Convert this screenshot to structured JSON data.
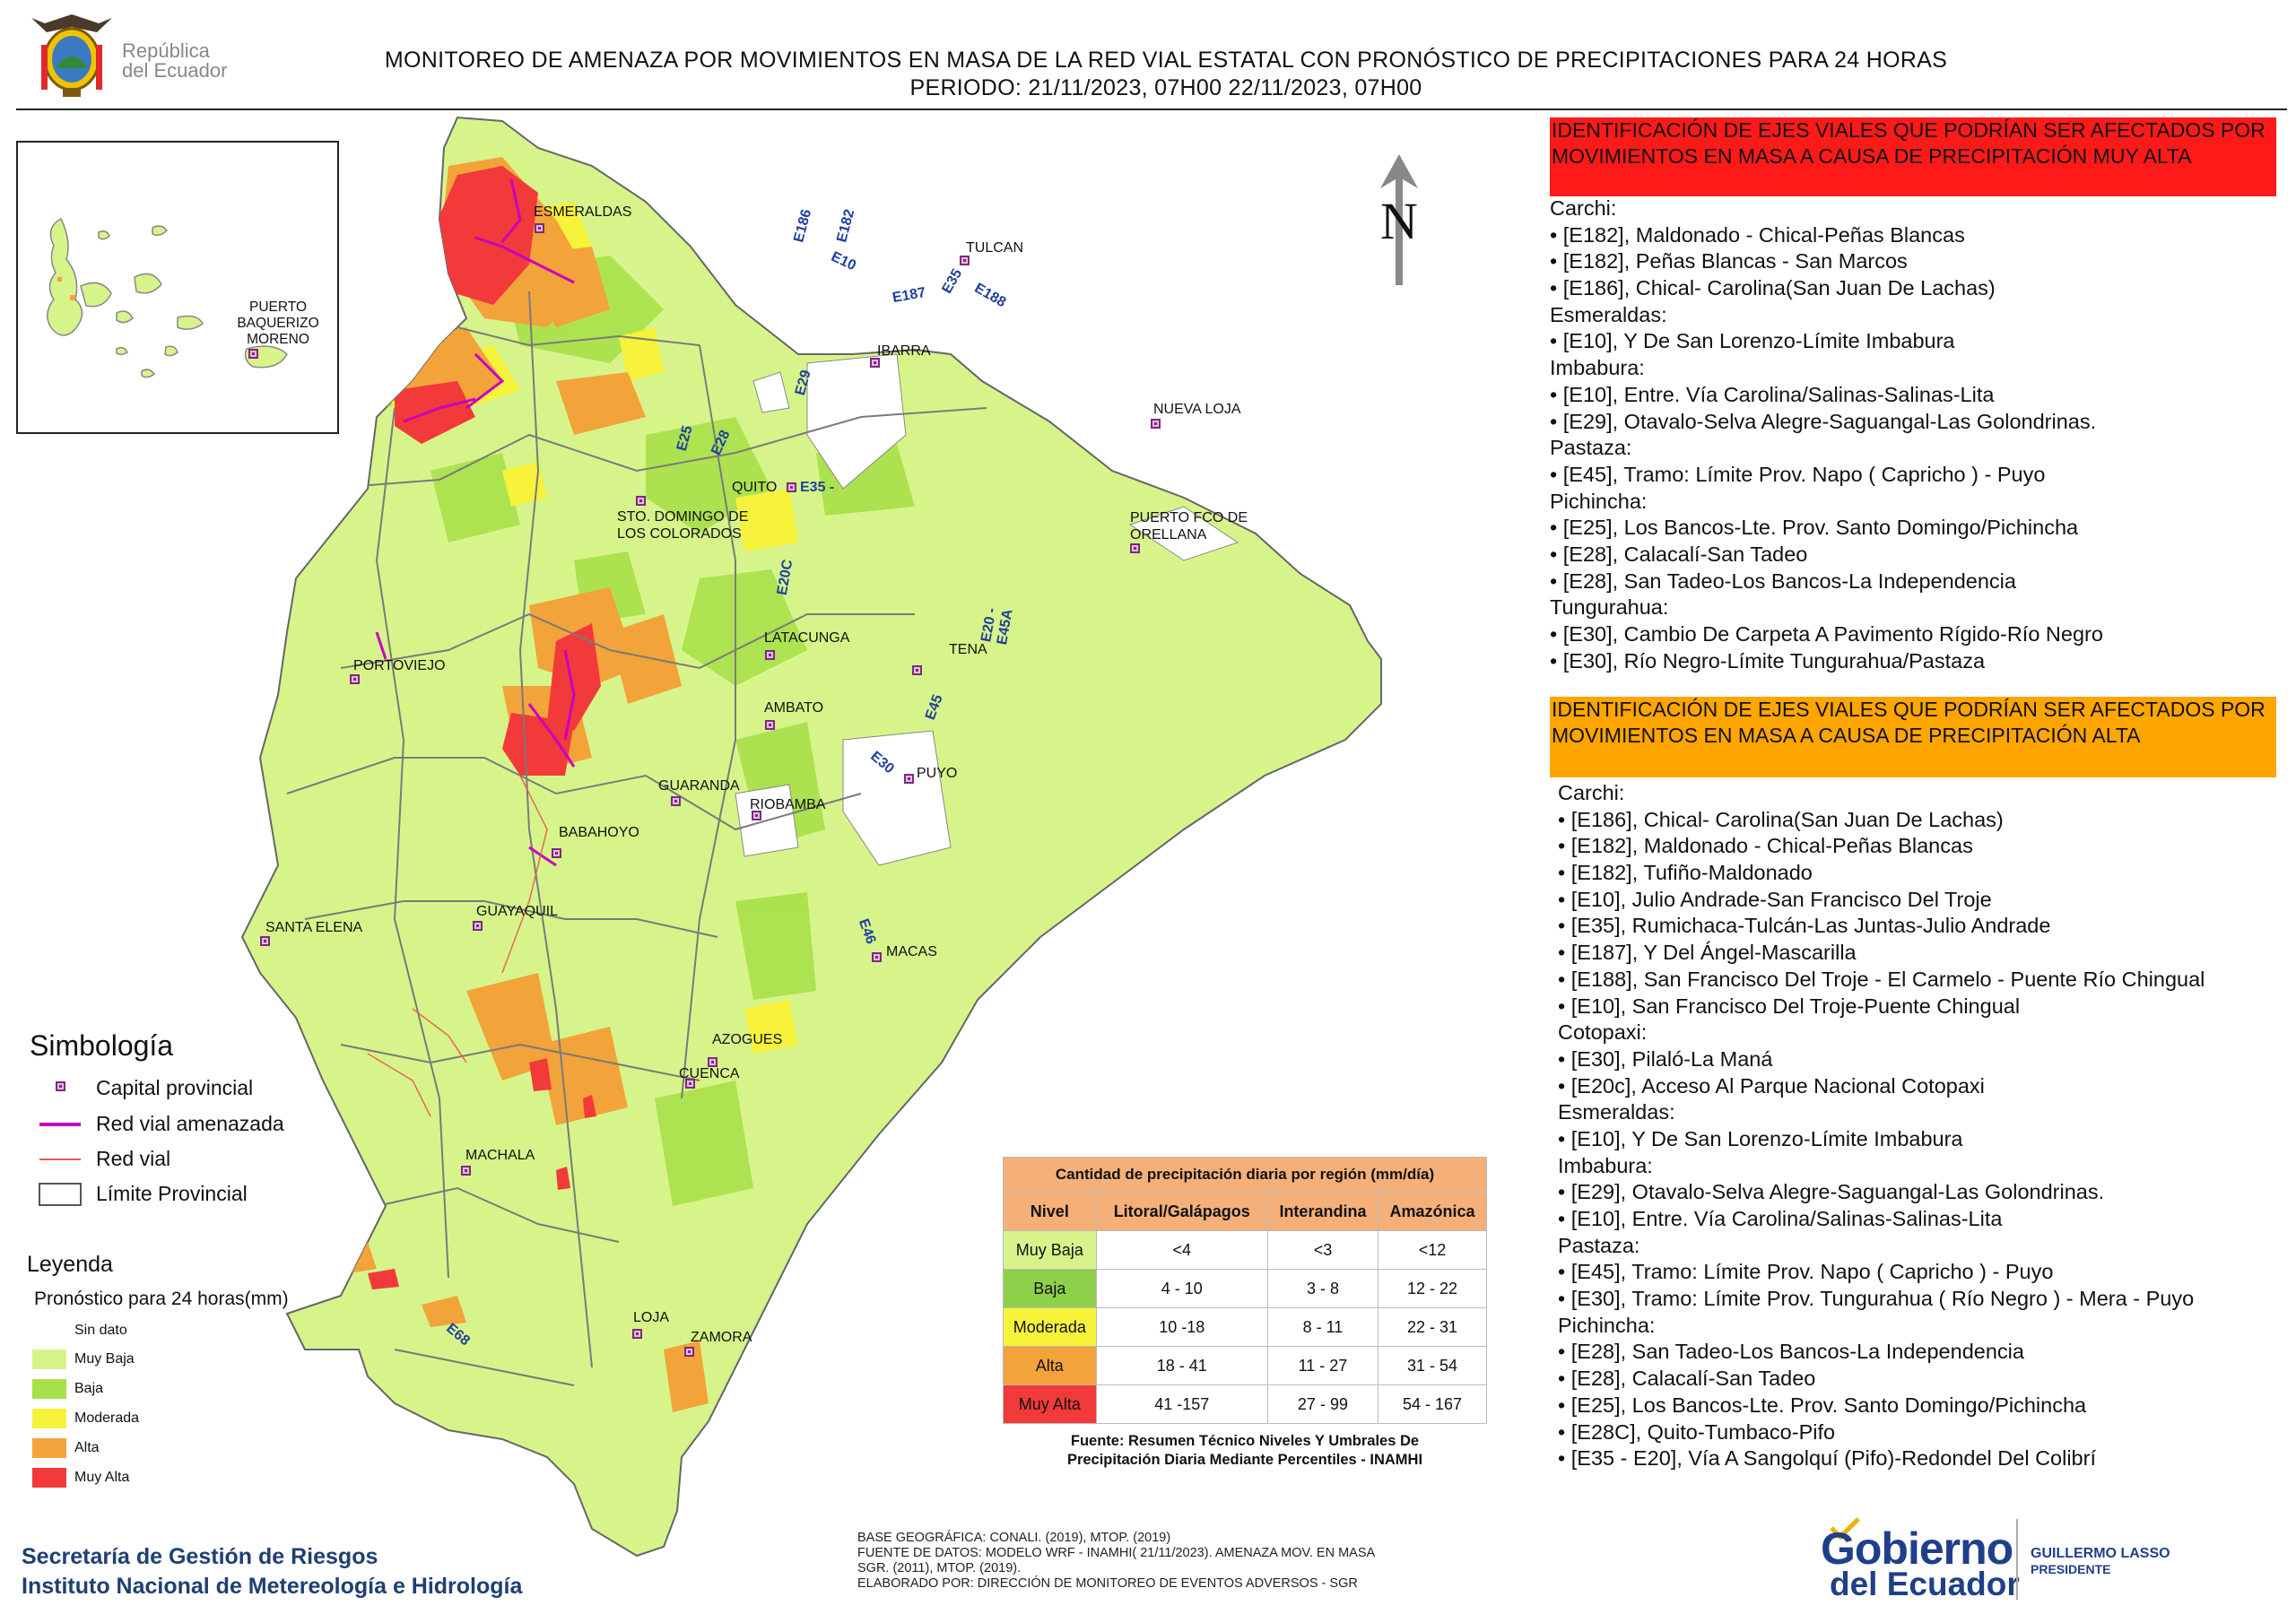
{
  "header": {
    "logo_text_line1": "República",
    "logo_text_line2": "del Ecuador",
    "title_line1": "MONITOREO DE AMENAZA POR MOVIMIENTOS EN MASA DE LA RED VIAL  ESTATAL  CON PRONÓSTICO  DE  PRECIPITACIONES PARA 24 HORAS",
    "title_line2": "PERIODO: 21/11/2023, 07H00 22/11/2023, 07H00"
  },
  "inset_map": {
    "city": "PUERTO BAQUERIZO MORENO"
  },
  "map": {
    "cities": [
      "ESMERALDAS",
      "TULCAN",
      "IBARRA",
      "NUEVA LOJA",
      "QUITO",
      "STO. DOMINGO DE LOS COLORADOS",
      "PUERTO FCO DE ORELLANA",
      "LATACUNGA",
      "TENA",
      "PORTOVIEJO",
      "AMBATO",
      "PUYO",
      "GUARANDA",
      "RIOBAMBA",
      "BABAHOYO",
      "GUAYAQUIL",
      "SANTA ELENA",
      "MACAS",
      "AZOGUES",
      "CUENCA",
      "MACHALA",
      "LOJA",
      "ZAMORA"
    ],
    "road_labels": [
      "E182",
      "E186",
      "E10",
      "E187",
      "E35",
      "E188",
      "E29",
      "E28",
      "E25",
      "E35 -",
      "E20C",
      "E20 - E45A",
      "E45",
      "E30",
      "E46",
      "E68"
    ],
    "north_label": "N",
    "colors": {
      "muy_baja": "#d7f48a",
      "baja": "#a8e04a",
      "moderada": "#f7f23a",
      "alta": "#f2a33a",
      "muy_alta": "#f23a3a",
      "road_threat": "#c800c0",
      "road": "#e8584e",
      "boundary": "#8a8a8a"
    }
  },
  "symbology": {
    "title": "Simbología",
    "items": [
      {
        "label": "Capital provincial",
        "icon": "capital-marker-icon"
      },
      {
        "label": "Red vial amenazada",
        "icon": "magenta-line-icon"
      },
      {
        "label": "Red vial",
        "icon": "red-line-icon"
      },
      {
        "label": "Límite Provincial",
        "icon": "outline-box-icon"
      }
    ]
  },
  "legend": {
    "title": "Leyenda",
    "subtitle": "Pronóstico para 24 horas(mm)",
    "items": [
      {
        "label": "Sin dato",
        "color": "#ffffff"
      },
      {
        "label": "Muy Baja",
        "color": "#d7f48a"
      },
      {
        "label": "Baja",
        "color": "#a8e04a"
      },
      {
        "label": "Moderada",
        "color": "#f7f23a"
      },
      {
        "label": "Alta",
        "color": "#f2a33a"
      },
      {
        "label": "Muy Alta",
        "color": "#f23a3a"
      }
    ]
  },
  "precip_table": {
    "title": "Cantidad de precipitación diaria por región (mm/día)",
    "headers": [
      "Nivel",
      "Litoral/Galápagos",
      "Interandina",
      "Amazónica"
    ],
    "rows": [
      {
        "nivel": "Muy Baja",
        "litoral": "<4",
        "interandina": "<3",
        "amazonica": "<12",
        "color": "#d7f48a"
      },
      {
        "nivel": "Baja",
        "litoral": "4 - 10",
        "interandina": "3 - 8",
        "amazonica": "12 - 22",
        "color": "#8ed04a"
      },
      {
        "nivel": "Moderada",
        "litoral": "10 -18",
        "interandina": "8 - 11",
        "amazonica": "22 - 31",
        "color": "#f7f23a"
      },
      {
        "nivel": "Alta",
        "litoral": "18 - 41",
        "interandina": "11 - 27",
        "amazonica": "31 - 54",
        "color": "#f2a33a"
      },
      {
        "nivel": "Muy Alta",
        "litoral": "41 -157",
        "interandina": "27 - 99",
        "amazonica": "54 - 167",
        "color": "#f23a3a"
      }
    ],
    "source_line1": "Fuente: Resumen Técnico Niveles Y Umbrales De",
    "source_line2": "Precipitación Diaria Mediante Percentiles - INAMHI"
  },
  "footer": {
    "org_line1": "Secretaría de Gestión de Riesgos",
    "org_line2": "Instituto Nacional de Metereología e Hidrología",
    "base_line1": "BASE GEOGRÁFICA: CONALI. (2019), MTOP. (2019)",
    "base_line2": "FUENTE DE DATOS: MODELO WRF - INAMHI( 21/11/2023).  AMENAZA MOV. EN MASA",
    "base_line3": "SGR. (2011), MTOP. (2019).",
    "base_line4": "ELABORADO POR: DIRECCIÓN DE MONITOREO DE EVENTOS ADVERSOS - SGR",
    "gob_line1": "Gobierno",
    "gob_line2": "del Ecuador",
    "president_name": "GUILLERMO LASSO",
    "president_title": "PRESIDENTE"
  },
  "panel_muy_alta": {
    "heading": "IDENTIFICACIÓN DE EJES VIALES QUE PODRÍAN SER AFECTADOS POR MOVIMIENTOS EN MASA A CAUSA DE PRECIPITACIÓN MUY ALTA",
    "heading_color": "#ff1a1a",
    "lines": [
      "Carchi:",
      "• [E182], Maldonado - Chical-Peñas Blancas",
      "• [E182], Peñas Blancas - San Marcos",
      "• [E186], Chical- Carolina(San Juan De Lachas)",
      "Esmeraldas:",
      "• [E10], Y De San Lorenzo-Límite Imbabura",
      "Imbabura:",
      "• [E10], Entre. Vía Carolina/Salinas-Salinas-Lita",
      "• [E29], Otavalo-Selva Alegre-Saguangal-Las Golondrinas.",
      "Pastaza:",
      "• [E45], Tramo: Límite Prov. Napo ( Capricho ) - Puyo",
      "Pichincha:",
      "• [E25], Los Bancos-Lte. Prov. Santo Domingo/Pichincha",
      "• [E28], Calacalí-San Tadeo",
      "• [E28], San Tadeo-Los Bancos-La Independencia",
      "Tungurahua:",
      "• [E30], Cambio De Carpeta A Pavimento Rígido-Río Negro",
      "• [E30], Río Negro-Límite Tungurahua/Pastaza"
    ]
  },
  "panel_alta": {
    "heading": "IDENTIFICACIÓN DE EJES VIALES QUE PODRÍAN SER AFECTADOS POR MOVIMIENTOS EN MASA A CAUSA DE PRECIPITACIÓN  ALTA",
    "heading_color": "#ffa500",
    "lines": [
      "Carchi:",
      "• [E186], Chical- Carolina(San Juan De Lachas)",
      "• [E182], Maldonado - Chical-Peñas Blancas",
      "• [E182], Tufiño-Maldonado",
      "• [E10], Julio Andrade-San Francisco Del Troje",
      "• [E35], Rumichaca-Tulcán-Las Juntas-Julio Andrade",
      "• [E187], Y Del Ángel-Mascarilla",
      "• [E188], San Francisco Del Troje - El Carmelo - Puente Río Chingual",
      "• [E10], San Francisco Del Troje-Puente Chingual",
      "Cotopaxi:",
      "• [E30], Pilaló-La Maná",
      "• [E20c], Acceso Al Parque Nacional Cotopaxi",
      "Esmeraldas:",
      "• [E10], Y De San Lorenzo-Límite Imbabura",
      "Imbabura:",
      "• [E29], Otavalo-Selva Alegre-Saguangal-Las Golondrinas.",
      "• [E10], Entre. Vía Carolina/Salinas-Salinas-Lita",
      "Pastaza:",
      "• [E45], Tramo: Límite Prov. Napo ( Capricho ) - Puyo",
      "• [E30], Tramo: Límite Prov. Tungurahua ( Río Negro ) - Mera - Puyo",
      "Pichincha:",
      "• [E28], San Tadeo-Los Bancos-La Independencia",
      "• [E28], Calacalí-San Tadeo",
      "• [E25], Los Bancos-Lte. Prov. Santo Domingo/Pichincha",
      "• [E28C], Quito-Tumbaco-Pifo",
      "• [E35 - E20], Vía A Sangolquí (Pifo)-Redondel Del Colibrí"
    ]
  }
}
